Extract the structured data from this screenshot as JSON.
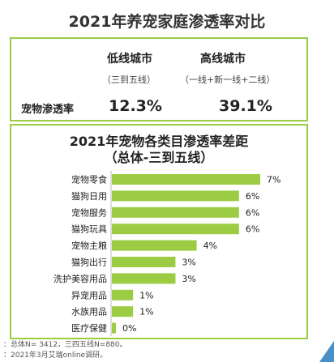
{
  "title": "2021年养宠家庭渗透率对比",
  "comparison": {
    "columns": [
      {
        "name": "低线城市",
        "sub": "（三到五线）",
        "value": "12.3%"
      },
      {
        "name": "高线城市",
        "sub": "（一线+新一线+二线）",
        "value": "39.1%"
      }
    ],
    "row_label": "宠物渗透率"
  },
  "chart_data": {
    "type": "bar",
    "orientation": "horizontal",
    "title": "2021年宠物各类目渗透率差距",
    "subtitle": "（总体-三到五线）",
    "categories": [
      "宠物零食",
      "猫狗日用",
      "宠物服务",
      "猫狗玩具",
      "宠物主粮",
      "猫狗出行",
      "洗护美容用品",
      "异宠用品",
      "水族用品",
      "医疗保健"
    ],
    "values": [
      7,
      6,
      6,
      6,
      4,
      3,
      3,
      1,
      1,
      0
    ],
    "value_suffix": "%",
    "bar_color": "#9ccc43",
    "xlim": [
      0,
      7
    ]
  },
  "footnotes": [
    "：总体N= 3412，三四五线N=880。",
    "：2021年3月艾瑞online调研。"
  ]
}
